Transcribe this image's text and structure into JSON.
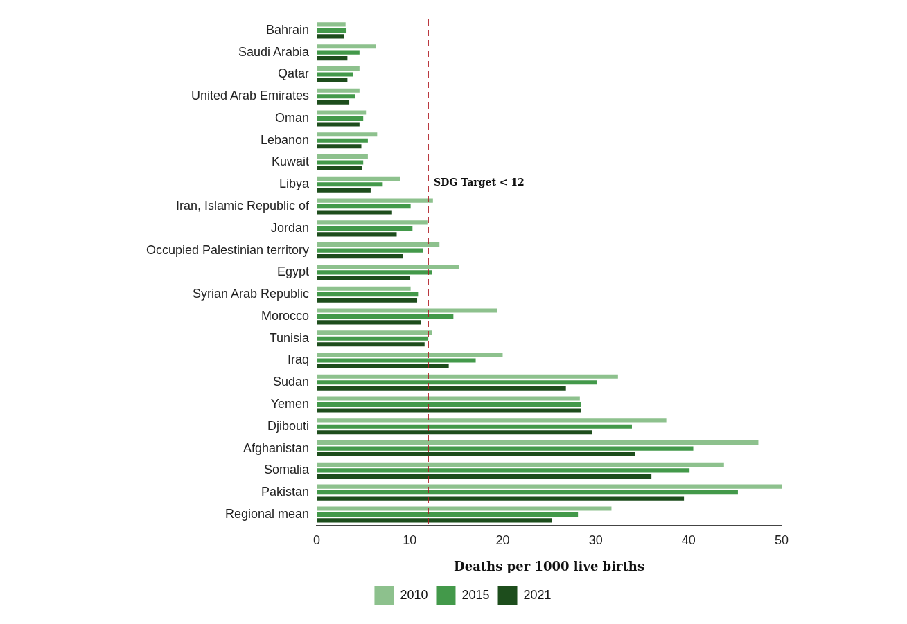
{
  "chart_data": {
    "type": "bar",
    "orientation": "horizontal",
    "xlabel": "Deaths per 1000 live births",
    "categories": [
      "Bahrain",
      "Saudi Arabia",
      "Qatar",
      "United Arab Emirates",
      "Oman",
      "Lebanon",
      "Kuwait",
      "Libya",
      "Iran, Islamic Republic of",
      "Jordan",
      "Occupied Palestinian territory",
      "Egypt",
      "Syrian Arab Republic",
      "Morocco",
      "Tunisia",
      "Iraq",
      "Sudan",
      "Yemen",
      "Djibouti",
      "Afghanistan",
      "Somalia",
      "Pakistan",
      "Regional mean"
    ],
    "series": [
      {
        "name": "2010",
        "color": "#8dc18d",
        "values": [
          3.1,
          6.4,
          4.6,
          4.6,
          5.3,
          6.5,
          5.5,
          9.0,
          12.5,
          11.9,
          13.2,
          15.3,
          10.1,
          19.4,
          12.4,
          20.0,
          32.4,
          28.3,
          37.6,
          47.5,
          43.8,
          50.0,
          31.7
        ]
      },
      {
        "name": "2015",
        "color": "#43994a",
        "values": [
          3.2,
          4.6,
          3.9,
          4.1,
          5.0,
          5.5,
          5.0,
          7.1,
          10.1,
          10.3,
          11.4,
          12.4,
          10.9,
          14.7,
          12.0,
          17.1,
          30.1,
          28.4,
          33.9,
          40.5,
          40.1,
          45.3,
          28.1
        ]
      },
      {
        "name": "2021",
        "color": "#1d4d1c",
        "values": [
          2.9,
          3.3,
          3.3,
          3.5,
          4.6,
          4.8,
          4.9,
          5.8,
          8.1,
          8.6,
          9.3,
          10.0,
          10.8,
          11.2,
          11.6,
          14.2,
          26.8,
          28.4,
          29.6,
          34.2,
          36.0,
          39.5,
          25.3
        ]
      }
    ],
    "xlim": [
      0,
      50
    ],
    "xticks": [
      0,
      10,
      20,
      30,
      40,
      50
    ],
    "ref_lines": [
      {
        "axis": "x",
        "value": 12,
        "label": "SDG Target < 12",
        "color": "#b01c24",
        "line_style": "dashed"
      }
    ],
    "grid": false,
    "legend": "bottom"
  }
}
